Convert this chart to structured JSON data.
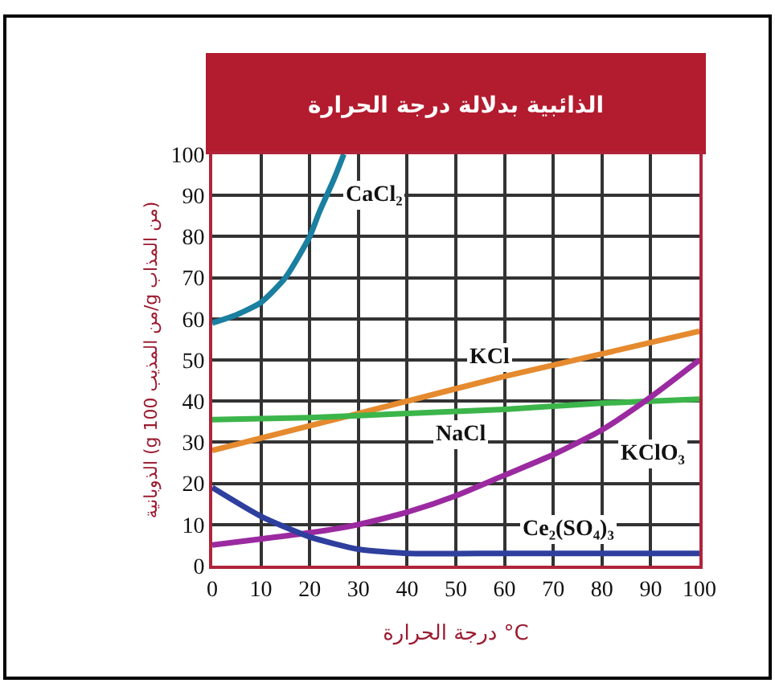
{
  "chart_data": {
    "type": "line",
    "title": "الذائبية بدلالة درجة الحرارة",
    "xlabel": "درجة الحرارة °C",
    "ylabel": "الذوبانية (g 100 من المذيب/g من المذاب)",
    "series": [
      {
        "color": "#1a7fa0",
        "x": [
          0,
          5,
          10,
          15,
          20,
          22,
          25,
          27
        ],
        "values": [
          59,
          61,
          64,
          70,
          80,
          86,
          94,
          100
        ]
      },
      {
        "color": "#e58a2e",
        "x": [
          0,
          20,
          40,
          60,
          80,
          100
        ],
        "values": [
          28,
          34,
          40,
          46,
          51.5,
          57
        ]
      },
      {
        "color": "#3cb54a",
        "x": [
          0,
          20,
          40,
          60,
          80,
          100
        ],
        "values": [
          35.5,
          36,
          37,
          38,
          39.5,
          40.5
        ]
      },
      {
        "color": "#9b2aa0",
        "x": [
          0,
          10,
          20,
          30,
          40,
          50,
          60,
          70,
          80,
          90,
          100
        ],
        "values": [
          5,
          6.5,
          8,
          10,
          13,
          17,
          22,
          27,
          33,
          41,
          50
        ]
      },
      {
        "color": "#2e3f9e",
        "x": [
          0,
          10,
          20,
          30,
          40,
          60,
          80,
          100
        ],
        "values": [
          19,
          12,
          7,
          4,
          3,
          3,
          3,
          3
        ]
      }
    ],
    "annotations": [
      {
        "text": "CaCl₂",
        "x": 23.5,
        "y": 90
      },
      {
        "text": "KCl",
        "x": 57,
        "y": 45
      },
      {
        "text": "NaCl",
        "x": 51,
        "y": 37.5
      },
      {
        "text": "KClO₃",
        "x": 80,
        "y": 33
      },
      {
        "text": "Ce₂(SO₄)₃",
        "x": 73,
        "y": 3
      }
    ],
    "xlim": [
      0,
      100
    ],
    "xticks": [
      0,
      10,
      20,
      30,
      40,
      50,
      60,
      70,
      80,
      90,
      100
    ],
    "ylim": [
      0,
      100
    ],
    "yticks": [
      0,
      10,
      20,
      30,
      40,
      50,
      60,
      70,
      80,
      90,
      100
    ],
    "grid": true,
    "legend": false,
    "marker": "none",
    "line_style": "solid"
  }
}
